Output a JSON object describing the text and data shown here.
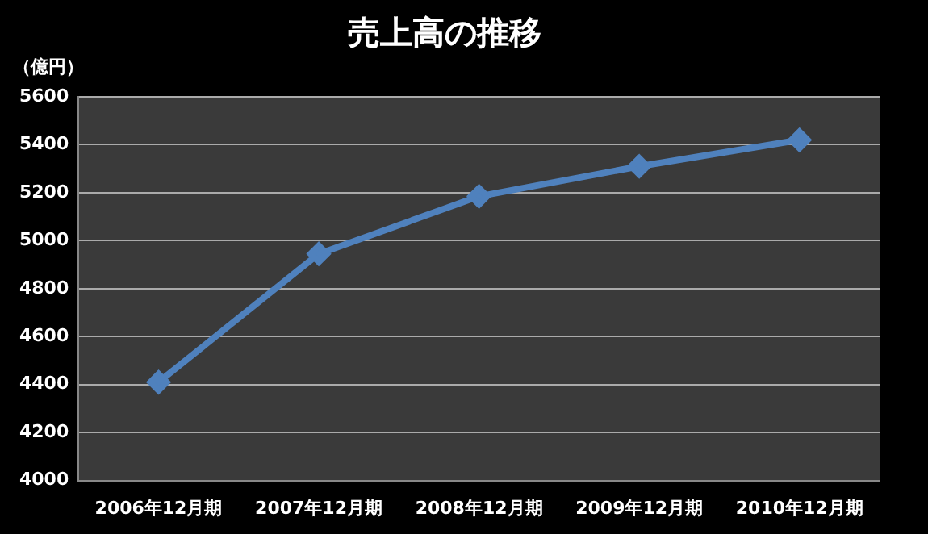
{
  "chart_data": {
    "type": "line",
    "title": "売上高の推移",
    "ylabel": "（億円）",
    "categories": [
      "2006年12月期",
      "2007年12月期",
      "2008年12月期",
      "2009年12月期",
      "2010年12月期"
    ],
    "series": [
      {
        "color": "#4f81bd",
        "values": [
          4410,
          4945,
          5185,
          5310,
          5420
        ]
      }
    ],
    "ylim": [
      4000,
      5600
    ],
    "yticks": [
      4000,
      4200,
      4400,
      4600,
      4800,
      5000,
      5200,
      5400,
      5600
    ],
    "grid": "y",
    "legend": false,
    "marker": "diamond",
    "line_style": "solid"
  }
}
